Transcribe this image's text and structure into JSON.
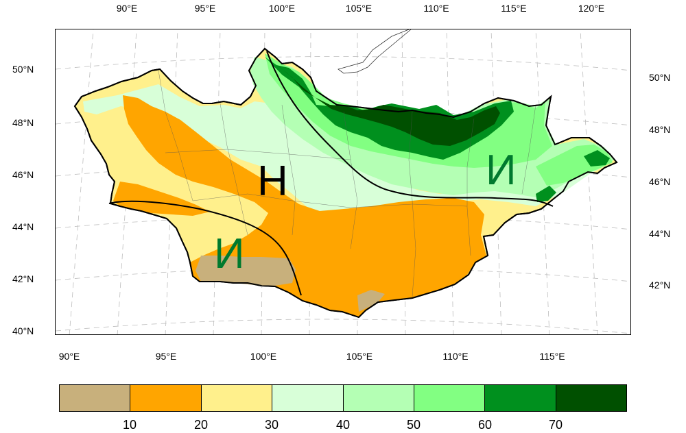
{
  "map": {
    "top_lon_labels": [
      "90°E",
      "95°E",
      "100°E",
      "105°E",
      "110°E",
      "115°E",
      "120°E"
    ],
    "bottom_lon_labels": [
      "90°E",
      "95°E",
      "100°E",
      "105°E",
      "110°E",
      "115°E"
    ],
    "left_lat_labels": [
      "50°N",
      "48°N",
      "46°N",
      "44°N",
      "42°N",
      "40°N"
    ],
    "right_lat_labels": [
      "50°N",
      "48°N",
      "46°N",
      "44°N",
      "42°N"
    ],
    "region_letters": [
      {
        "text": "H",
        "color": "#000000"
      },
      {
        "text": "И",
        "color": "#007a2e"
      },
      {
        "text": "И",
        "color": "#007a2e"
      }
    ]
  },
  "colorbar": {
    "colors": [
      "#c8b07c",
      "#ffa500",
      "#fff08c",
      "#d8ffd8",
      "#b4ffb4",
      "#82ff82",
      "#00901e",
      "#005000"
    ],
    "labels": [
      "10",
      "20",
      "30",
      "40",
      "50",
      "60",
      "70"
    ]
  }
}
